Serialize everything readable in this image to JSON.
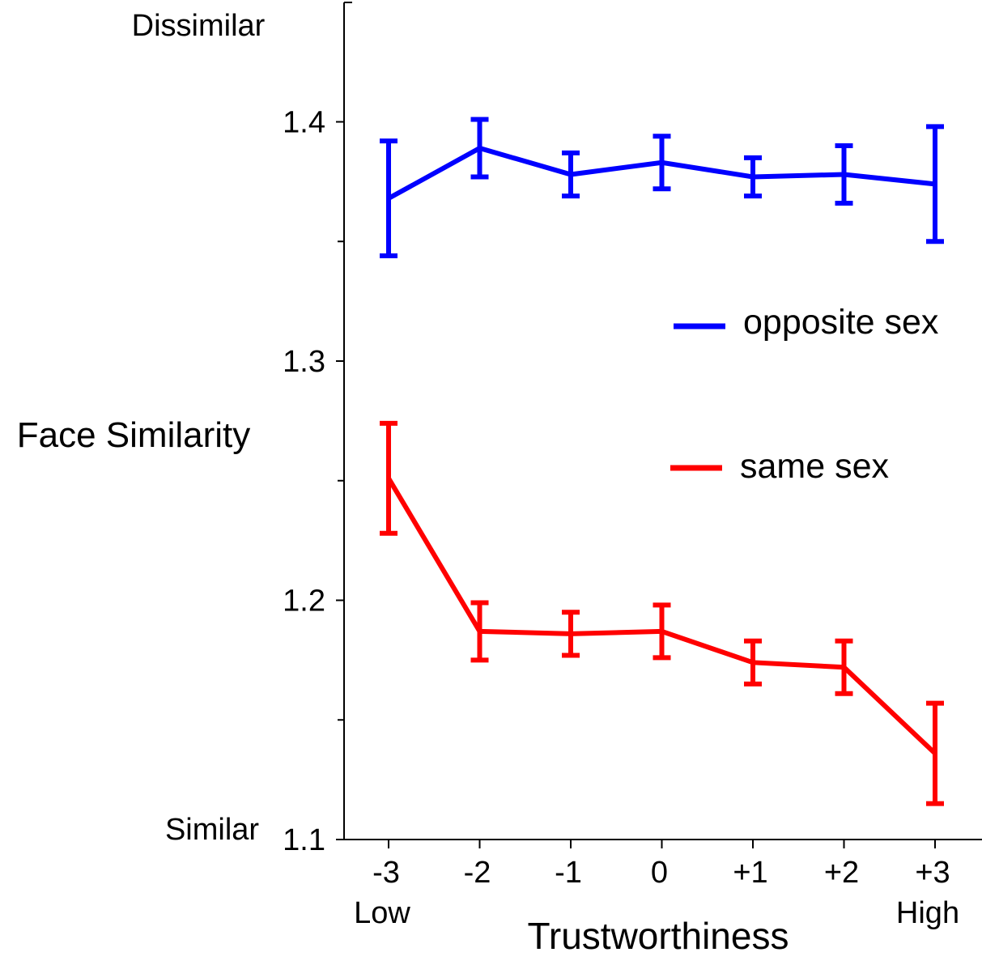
{
  "chart_data": {
    "type": "line",
    "title": "",
    "xlabel": "Trustworthiness",
    "ylabel": "Face Similarity",
    "y_high_label": "Dissimilar",
    "y_low_label": "Similar",
    "x_low_label": "Low",
    "x_high_label": "High",
    "categories": [
      "-3",
      "-2",
      "-1",
      "0",
      "+1",
      "+2",
      "+3"
    ],
    "ylim": [
      1.1,
      1.45
    ],
    "yticks": [
      1.1,
      1.2,
      1.3,
      1.4
    ],
    "ytick_labels": [
      "1.1",
      "1.2",
      "1.3",
      "1.4"
    ],
    "minor_yticks": [
      1.15,
      1.25,
      1.35
    ],
    "grid": false,
    "legend_position": "right",
    "series": [
      {
        "name": "opposite sex",
        "color": "#0000ff",
        "values": [
          1.368,
          1.389,
          1.378,
          1.383,
          1.377,
          1.378,
          1.374
        ],
        "errors": [
          0.024,
          0.012,
          0.009,
          0.011,
          0.008,
          0.012,
          0.024
        ]
      },
      {
        "name": "same sex",
        "color": "#ff0000",
        "values": [
          1.251,
          1.187,
          1.186,
          1.187,
          1.174,
          1.172,
          1.136
        ],
        "errors": [
          0.023,
          0.012,
          0.009,
          0.011,
          0.009,
          0.011,
          0.021
        ]
      }
    ]
  }
}
